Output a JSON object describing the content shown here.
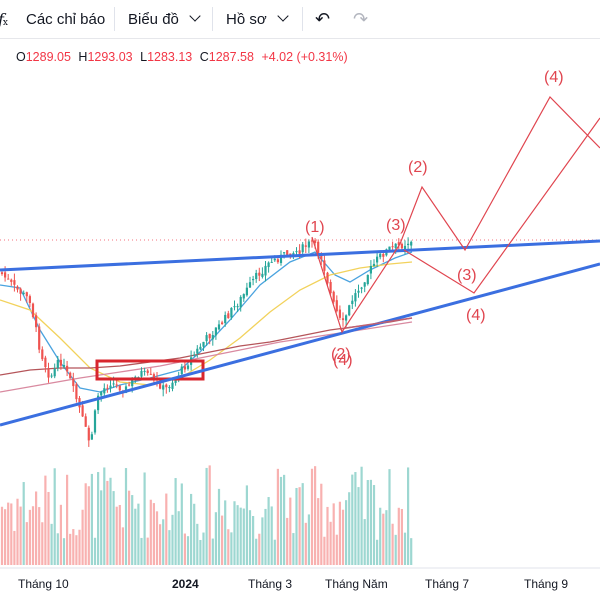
{
  "toolbar": {
    "fx_icon": "function-fx-icon",
    "indicators_label": "Các chỉ báo",
    "chart_label": "Biểu đồ",
    "profile_label": "Hồ sơ",
    "undo_icon": "undo-arrow-icon",
    "redo_icon": "redo-arrow-icon"
  },
  "ohlc": {
    "o_key": "O",
    "o_val": "1289.05",
    "h_key": "H",
    "h_val": "1293.03",
    "l_key": "L",
    "l_val": "1283.13",
    "c_key": "C",
    "c_val": "1287.58",
    "change": "+4.02 (+0.31%)"
  },
  "colors": {
    "up": "#26a69a",
    "down": "#ef5350",
    "trend": "#3b6fe0",
    "wave": "#e0454f",
    "ma_fast": "#4aa3df",
    "ma_mid": "#f2d25c",
    "ma_slow": "#b5555a"
  },
  "x_axis": [
    "Tháng 10",
    "2024",
    "Tháng 3",
    "Tháng Năm",
    "Tháng 7",
    "Tháng 9"
  ],
  "waves": {
    "w1": "(1)",
    "w2_top": "(2)",
    "w3_top": "(3)",
    "w4_top": "(4)",
    "w3_mid": "(3)",
    "w4_mid": "(4)",
    "w2_low": "(2)",
    "w4_low": "(4)"
  }
}
